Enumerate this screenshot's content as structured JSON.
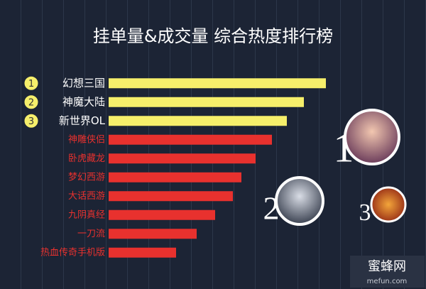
{
  "chart_data": {
    "type": "hbar",
    "title": "挂单量&成交量 综合热度排行榜",
    "categories": [
      "幻想三国",
      "神魔大陆",
      "新世界OL",
      "神雕侠侣",
      "卧虎藏龙",
      "梦幻西游",
      "大话西游",
      "九阴真经",
      "一刀流",
      "热血传奇手机版"
    ],
    "values": [
      306,
      275,
      251,
      230,
      207,
      187,
      175,
      150,
      124,
      95
    ],
    "colors": [
      "#f6ef6b",
      "#f6ef6b",
      "#f6ef6b",
      "#e8312e",
      "#e8312e",
      "#e8312e",
      "#e8312e",
      "#e8312e",
      "#e8312e",
      "#e8312e"
    ],
    "xlim": [
      0,
      310
    ],
    "rank_badges": [
      "1",
      "2",
      "3"
    ],
    "rank_numbers": [
      "1",
      "2",
      "3"
    ],
    "watermark": {
      "name": "蜜蜂网",
      "site": "mefun.com"
    }
  }
}
